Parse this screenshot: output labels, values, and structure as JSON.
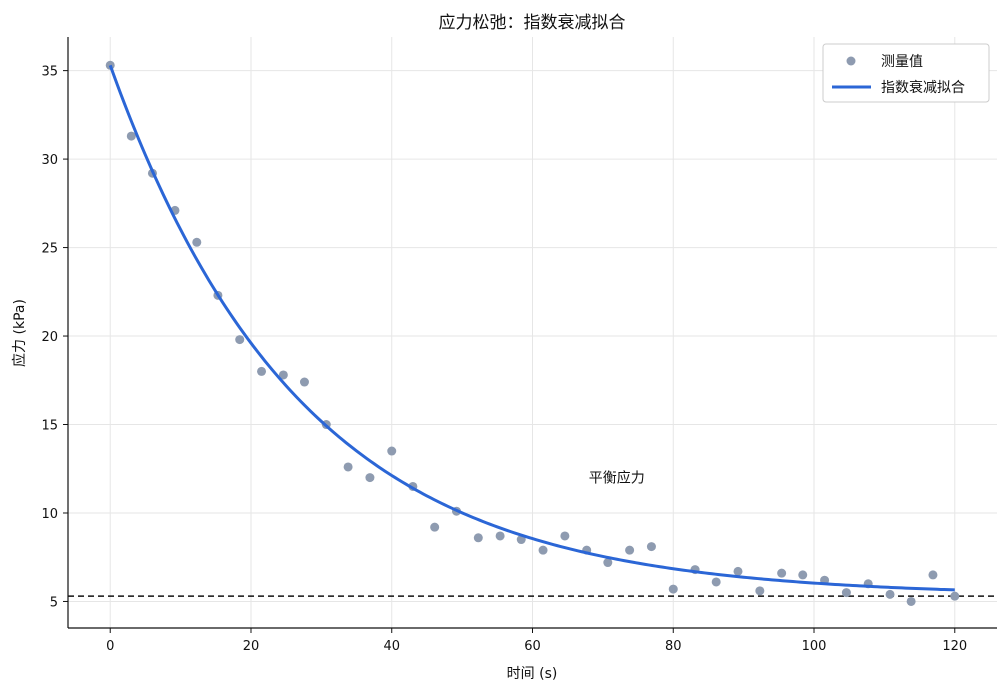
{
  "chart_data": {
    "type": "scatter",
    "title": "应力松弛：指数衰减拟合",
    "xlabel": "时间 (s)",
    "ylabel": "应力 (kPa)",
    "xlim": [
      -6,
      126
    ],
    "ylim": [
      3.5,
      36.9
    ],
    "xticks": [
      0,
      20,
      40,
      60,
      80,
      100,
      120
    ],
    "yticks": [
      5,
      10,
      15,
      20,
      25,
      30,
      35
    ],
    "grid": true,
    "legend_position": "top-right",
    "series": [
      {
        "name": "测量值",
        "kind": "scatter",
        "color": "#8e9bb0",
        "x": [
          0,
          3,
          6,
          9.2,
          12.3,
          15.3,
          18.4,
          21.5,
          24.6,
          27.6,
          30.7,
          33.8,
          36.9,
          40,
          43,
          46.1,
          49.2,
          52.3,
          55.4,
          58.4,
          61.5,
          64.6,
          67.7,
          70.7,
          73.8,
          76.9,
          80,
          83.1,
          86.1,
          89.2,
          92.3,
          95.4,
          98.4,
          101.5,
          104.6,
          107.7,
          110.8,
          113.8,
          116.9,
          120
        ],
        "y": [
          35.3,
          31.3,
          29.2,
          27.1,
          25.3,
          22.3,
          19.8,
          18.0,
          17.8,
          17.4,
          15.0,
          12.6,
          12.0,
          13.5,
          11.5,
          9.2,
          10.1,
          8.6,
          8.7,
          8.5,
          7.9,
          8.7,
          7.9,
          7.2,
          7.9,
          8.1,
          5.7,
          6.8,
          6.1,
          6.7,
          5.6,
          6.6,
          6.5,
          6.2,
          5.5,
          6.0,
          5.4,
          5.0,
          6.5,
          5.3
        ]
      },
      {
        "name": "指数衰减拟合",
        "kind": "line",
        "color": "#2b66d6",
        "model": {
          "equilibrium": 5.3,
          "amplitude": 30.0,
          "tau": 27.0
        },
        "x_range": [
          0,
          120
        ]
      }
    ],
    "reference_line": {
      "y": 5.3,
      "style": "dashed",
      "color": "#111111"
    },
    "annotation": {
      "text": "平衡应力",
      "x": 68,
      "y": 12.0
    }
  }
}
